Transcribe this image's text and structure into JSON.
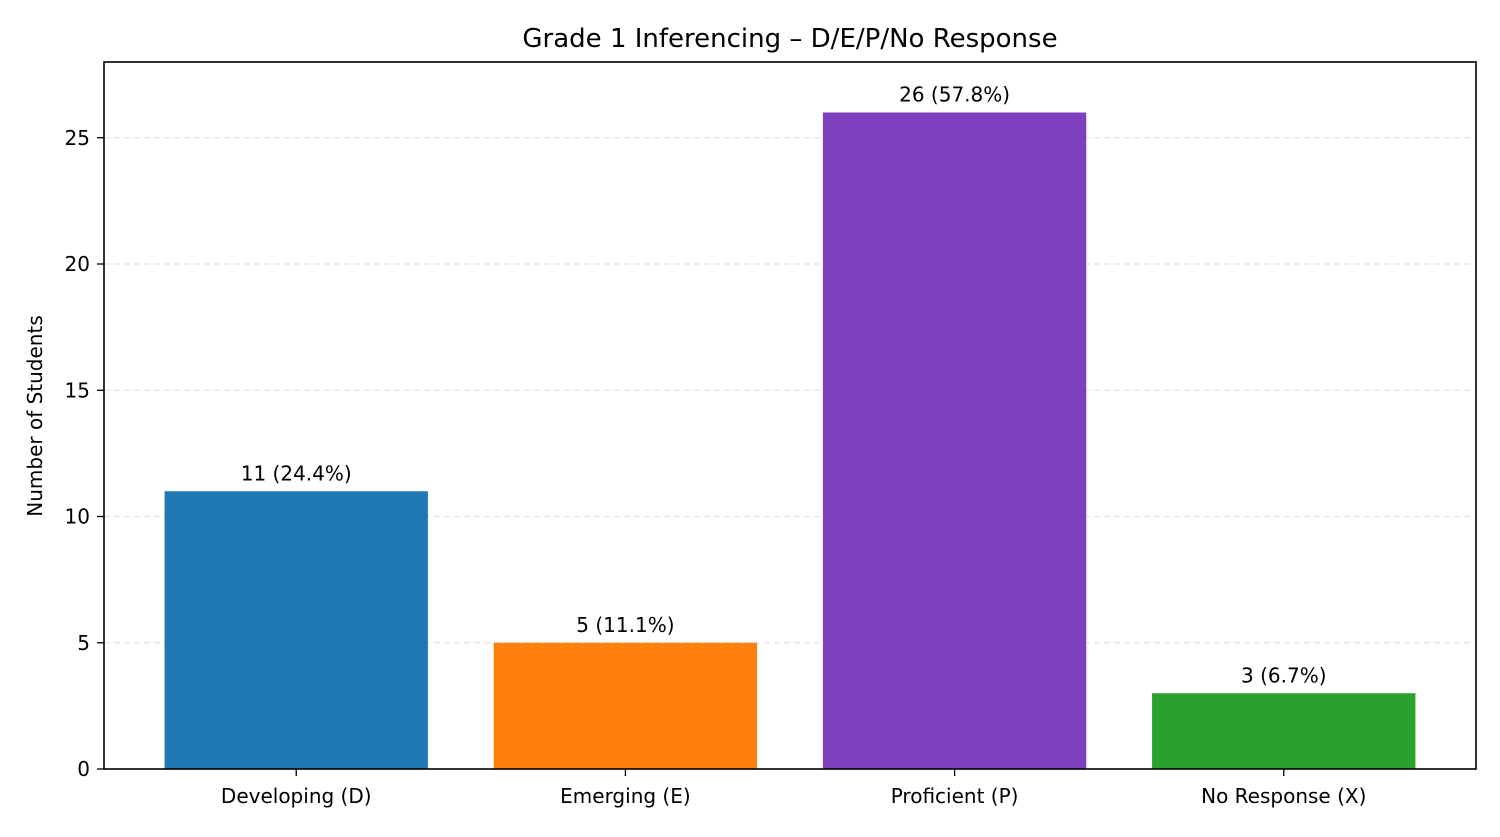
{
  "chart_data": {
    "type": "bar",
    "title": "Grade 1 Inferencing – D/E/P/No Response",
    "xlabel": "",
    "ylabel": "Number of Students",
    "categories": [
      "Developing (D)",
      "Emerging (E)",
      "Proficient (P)",
      "No Response (X)"
    ],
    "values": [
      11,
      5,
      26,
      3
    ],
    "data_labels": [
      "11 (24.4%)",
      "5 (11.1%)",
      "26 (57.8%)",
      "3 (6.7%)"
    ],
    "colors": [
      "#1f77b4",
      "#ff7f0e",
      "#7f3fbf",
      "#2ca02c"
    ],
    "ylim": [
      0,
      28
    ],
    "yticks": [
      0,
      5,
      10,
      15,
      20,
      25
    ],
    "grid": "y dashed",
    "legend": "none"
  }
}
